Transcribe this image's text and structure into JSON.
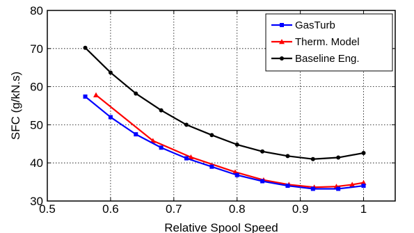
{
  "chart_data": {
    "type": "line",
    "xlabel": "Relative Spool Speed",
    "ylabel": "SFC (g/kN.s)",
    "xlim": [
      0.5,
      1.05
    ],
    "ylim": [
      30,
      80
    ],
    "xticks": [
      0.5,
      0.6,
      0.7,
      0.8,
      0.9,
      1.0
    ],
    "xtick_labels": [
      "0.5",
      "0.6",
      "0.7",
      "0.8",
      "0.9",
      "1"
    ],
    "yticks": [
      30,
      40,
      50,
      60,
      70,
      80
    ],
    "ytick_labels": [
      "30",
      "40",
      "50",
      "60",
      "70",
      "80"
    ],
    "grid": true,
    "legend_position": "top-right",
    "series": [
      {
        "name": "GasTurb",
        "color": "#0000ff",
        "marker": "square",
        "x": [
          0.56,
          0.6,
          0.64,
          0.68,
          0.72,
          0.76,
          0.8,
          0.84,
          0.88,
          0.92,
          0.96,
          1.0
        ],
        "y": [
          57.4,
          52.0,
          47.5,
          44.0,
          41.2,
          39.0,
          36.8,
          35.2,
          34.0,
          33.2,
          33.2,
          34.0
        ]
      },
      {
        "name": "Therm. Model",
        "color": "#ff0000",
        "marker": "triangle",
        "x": [
          0.577,
          0.667,
          0.727,
          0.797,
          0.842,
          0.882,
          0.922,
          0.957,
          0.982,
          1.0
        ],
        "y": [
          57.8,
          45.8,
          41.5,
          37.6,
          35.5,
          34.3,
          33.6,
          33.8,
          34.3,
          34.8
        ]
      },
      {
        "name": "Baseline Eng.",
        "color": "#000000",
        "marker": "circle",
        "x": [
          0.56,
          0.6,
          0.64,
          0.68,
          0.72,
          0.76,
          0.8,
          0.84,
          0.88,
          0.92,
          0.96,
          1.0
        ],
        "y": [
          70.2,
          63.7,
          58.2,
          53.8,
          50.0,
          47.3,
          44.8,
          43.0,
          41.8,
          41.0,
          41.4,
          42.6
        ]
      }
    ]
  }
}
